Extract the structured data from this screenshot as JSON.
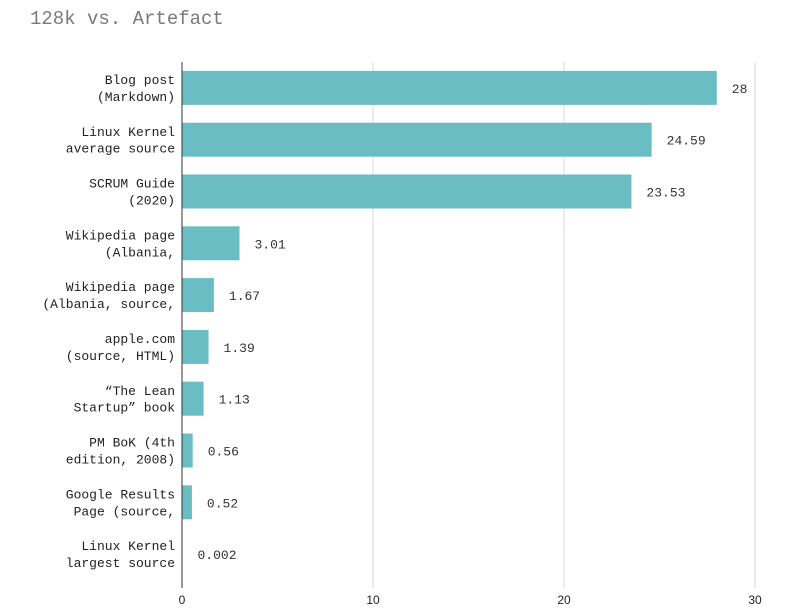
{
  "chart_data": {
    "type": "bar",
    "orientation": "horizontal",
    "title": "128k vs. Artefact",
    "xlabel": "",
    "ylabel": "",
    "xlim": [
      0,
      30
    ],
    "xticks": [
      0,
      10,
      20,
      30
    ],
    "grid": true,
    "legend": "none",
    "bar_color": "#6bbdc4",
    "categories": [
      [
        "Blog post",
        "(Markdown)"
      ],
      [
        "Linux Kernel",
        "average source"
      ],
      [
        "SCRUM Guide",
        "(2020)"
      ],
      [
        "Wikipedia page",
        "(Albania,"
      ],
      [
        "Wikipedia page",
        "(Albania, source,"
      ],
      [
        "apple.com",
        "(source, HTML)"
      ],
      [
        "“The Lean",
        "Startup” book"
      ],
      [
        "PM BoK (4th",
        "edition, 2008)"
      ],
      [
        "Google Results",
        "Page (source,"
      ],
      [
        "Linux Kernel",
        "largest source"
      ]
    ],
    "values": [
      28,
      24.59,
      23.53,
      3.01,
      1.67,
      1.39,
      1.13,
      0.56,
      0.52,
      0.002
    ],
    "value_labels": [
      "28",
      "24.59",
      "23.53",
      "3.01",
      "1.67",
      "1.39",
      "1.13",
      "0.56",
      "0.52",
      "0.002"
    ]
  }
}
